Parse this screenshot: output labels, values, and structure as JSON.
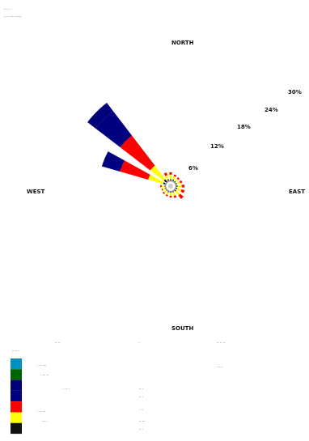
{
  "header": {
    "line1": "···  ·  ·",
    "line2": "···  ·  ···· ······"
  },
  "directions": {
    "north": "NORTH",
    "south": "SOUTH",
    "east": "EAST",
    "west": "WEST"
  },
  "rings": [
    "6%",
    "12%",
    "18%",
    "24%",
    "30%"
  ],
  "chart_data": {
    "type": "windrose",
    "unit": "%",
    "directions_count": 16,
    "ring_values": [
      6,
      12,
      18,
      24,
      30
    ],
    "speed_colors": [
      "#111111",
      "#ffff00",
      "#ff0000",
      "#000080",
      "#00007a",
      "#006400",
      "#0090c0"
    ],
    "sectors": [
      {
        "dir": "NNW",
        "bearing": 337.5,
        "segments": [
          0.6,
          1.2,
          0.8
        ]
      },
      {
        "dir": "NW",
        "bearing": 315.0,
        "segments": [
          1.0,
          5.0,
          11.0,
          9.0,
          3.0
        ]
      },
      {
        "dir": "WNW",
        "bearing": 292.5,
        "segments": [
          0.8,
          4.5,
          8.5,
          5.5
        ]
      },
      {
        "dir": "N",
        "bearing": 0.0,
        "segments": [
          0.5,
          1.3,
          0.7
        ]
      },
      {
        "dir": "NNE",
        "bearing": 22.5,
        "segments": [
          0.5,
          1.0,
          0.5
        ]
      },
      {
        "dir": "NE",
        "bearing": 45.0,
        "segments": [
          0.4,
          0.9,
          0.5
        ]
      },
      {
        "dir": "ENE",
        "bearing": 67.5,
        "segments": [
          0.4,
          1.0,
          0.6
        ]
      },
      {
        "dir": "E",
        "bearing": 90.0,
        "segments": [
          0.5,
          1.2,
          0.8
        ]
      },
      {
        "dir": "ESE",
        "bearing": 112.5,
        "segments": [
          0.5,
          1.3,
          0.9
        ]
      },
      {
        "dir": "SE",
        "bearing": 135.0,
        "segments": [
          0.5,
          1.5,
          1.3
        ]
      },
      {
        "dir": "SSE",
        "bearing": 157.5,
        "segments": [
          0.4,
          1.1,
          0.6
        ]
      },
      {
        "dir": "S",
        "bearing": 180.0,
        "segments": [
          0.4,
          0.9,
          0.5
        ]
      },
      {
        "dir": "SSW",
        "bearing": 202.5,
        "segments": [
          0.4,
          0.8,
          0.4
        ]
      },
      {
        "dir": "SW",
        "bearing": 225.0,
        "segments": [
          0.3,
          0.8,
          0.4
        ]
      },
      {
        "dir": "WSW",
        "bearing": 247.5,
        "segments": [
          0.3,
          0.7,
          0.3
        ]
      },
      {
        "dir": "W",
        "bearing": 270.0,
        "segments": [
          0.3,
          0.8,
          0.4
        ]
      }
    ]
  },
  "legend": {
    "swatches": [
      "#0090c0",
      "#006400",
      "#00007a",
      "#000080",
      "#ff0000",
      "#ffff00",
      "#111111"
    ],
    "col1": [
      "·· ··",
      "·· ·· ·",
      "· ·· ····",
      "· ··· ··",
      "· ·· ·",
      "· ·· ···",
      "··· ·"
    ],
    "col2": [
      "·",
      "·· ·",
      "·· ·",
      "· ··",
      "·· ···",
      "·· ·"
    ],
    "col3": [
      "·· ·· ··",
      "··· ··"
    ]
  }
}
